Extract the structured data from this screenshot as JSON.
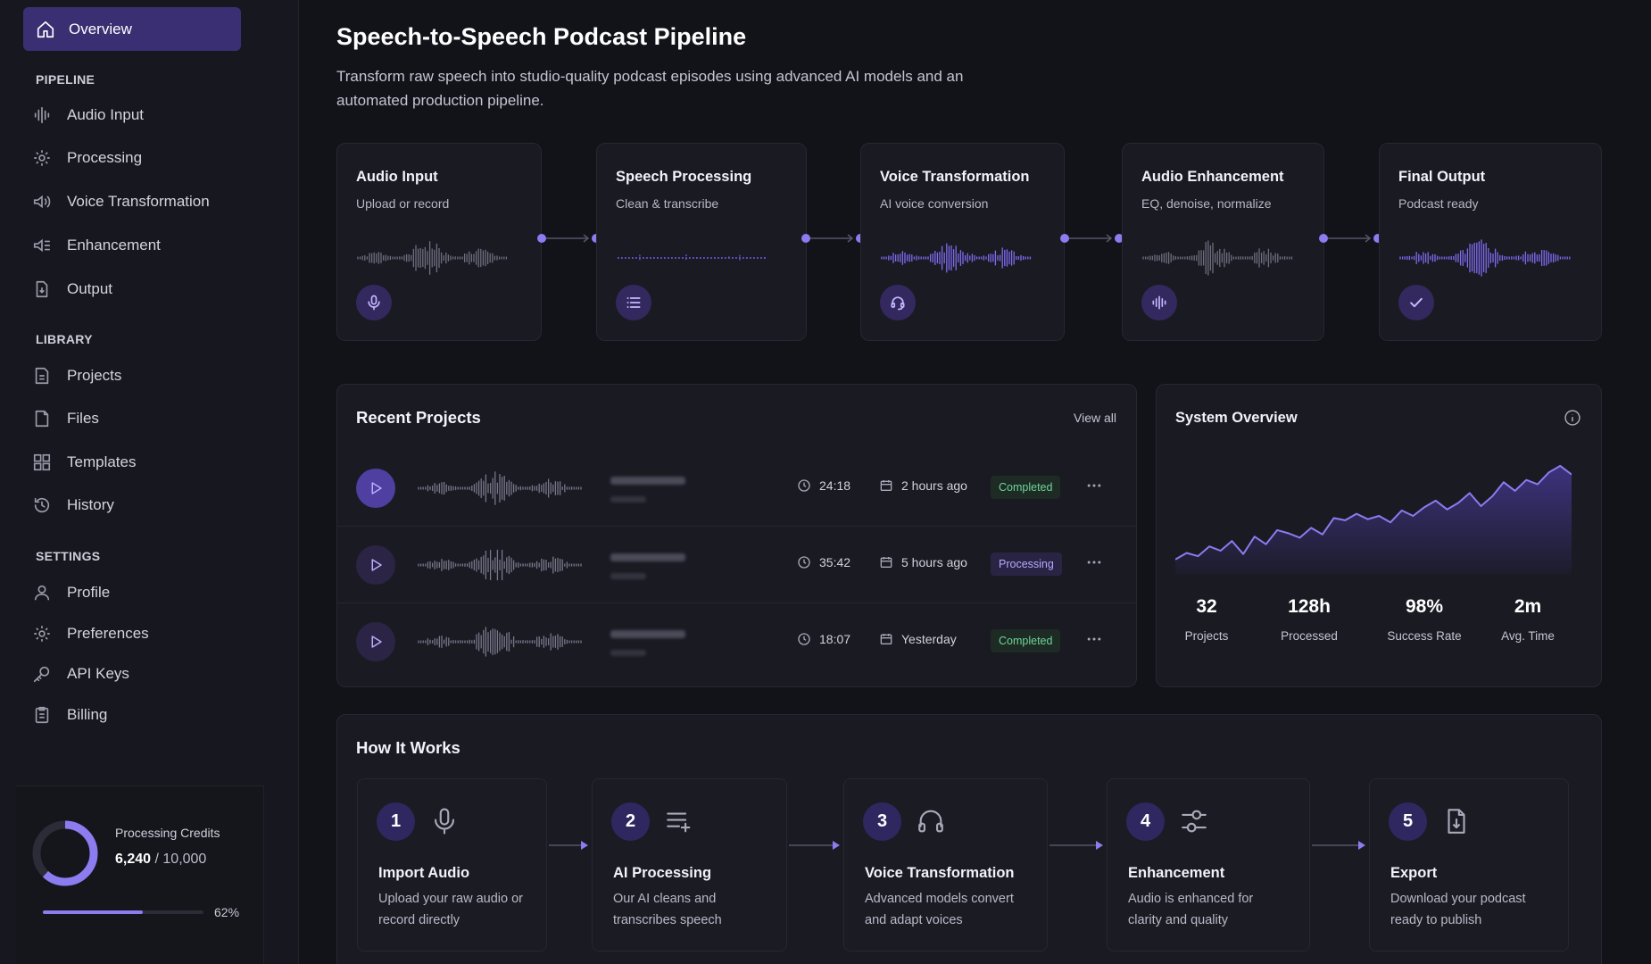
{
  "sidebar": {
    "active": {
      "label": "Overview",
      "icon": "home-icon"
    },
    "sections": [
      {
        "label": "PIPELINE",
        "items": [
          {
            "label": "Audio Input",
            "icon": "waveform-icon"
          },
          {
            "label": "Processing",
            "icon": "gear-icon"
          },
          {
            "label": "Voice Transformation",
            "icon": "voice-icon"
          },
          {
            "label": "Enhancement",
            "icon": "sliders-icon"
          },
          {
            "label": "Output",
            "icon": "export-file-icon"
          }
        ]
      },
      {
        "label": "LIBRARY",
        "items": [
          {
            "label": "Projects",
            "icon": "document-icon"
          },
          {
            "label": "Files",
            "icon": "file-icon"
          },
          {
            "label": "Templates",
            "icon": "grid-icon"
          },
          {
            "label": "History",
            "icon": "history-icon"
          }
        ]
      },
      {
        "label": "SETTINGS",
        "items": [
          {
            "label": "Profile",
            "icon": "user-icon"
          },
          {
            "label": "Preferences",
            "icon": "gear-icon"
          },
          {
            "label": "API Keys",
            "icon": "key-icon"
          },
          {
            "label": "Billing",
            "icon": "clipboard-icon"
          }
        ]
      }
    ],
    "credits": {
      "title": "Processing Credits",
      "used": "6,240",
      "total": "10,000",
      "percent": 62,
      "percent_label": "62%"
    }
  },
  "header": {
    "title": "Speech-to-Speech Podcast Pipeline",
    "subtitle": "Transform raw speech into studio-quality podcast episodes using advanced AI models and an automated production pipeline."
  },
  "pipeline": [
    {
      "title": "Audio Input",
      "subtitle": "Upload or record",
      "icon": "microphone-icon",
      "wave_style": "gray"
    },
    {
      "title": "Speech Processing",
      "subtitle": "Clean & transcribe",
      "icon": "list-icon",
      "wave_style": "dotted"
    },
    {
      "title": "Voice Transformation",
      "subtitle": "AI voice conversion",
      "icon": "headset-icon",
      "wave_style": "purple"
    },
    {
      "title": "Audio Enhancement",
      "subtitle": "EQ, denoise, normalize",
      "icon": "waveform-icon",
      "wave_style": "gray"
    },
    {
      "title": "Final Output",
      "subtitle": "Podcast ready",
      "icon": "check-icon",
      "wave_style": "purple"
    }
  ],
  "recent_projects": {
    "title": "Recent Projects",
    "view_all": "View all",
    "rows": [
      {
        "duration": "24:18",
        "date": "2 hours ago",
        "status": "Completed",
        "status_type": "done",
        "play_style": "filled"
      },
      {
        "duration": "35:42",
        "date": "5 hours ago",
        "status": "Processing",
        "status_type": "proc",
        "play_style": "outline"
      },
      {
        "duration": "18:07",
        "date": "Yesterday",
        "status": "Completed",
        "status_type": "done",
        "play_style": "outline"
      }
    ]
  },
  "system_overview": {
    "title": "System Overview",
    "info_icon": "info-icon",
    "stats": [
      {
        "value": "32",
        "label": "Projects"
      },
      {
        "value": "128h",
        "label": "Processed"
      },
      {
        "value": "98%",
        "label": "Success Rate"
      },
      {
        "value": "2m",
        "label": "Avg. Time"
      }
    ],
    "trend": [
      10,
      16,
      13,
      22,
      18,
      27,
      15,
      31,
      24,
      37,
      34,
      30,
      39,
      33,
      48,
      46,
      52,
      47,
      50,
      44,
      55,
      50,
      58,
      64,
      56,
      62,
      71,
      59,
      68,
      81,
      73,
      83,
      79,
      90,
      96,
      88
    ]
  },
  "how_it_works": {
    "title": "How It Works",
    "steps": [
      {
        "num": "1",
        "title": "Import Audio",
        "desc": "Upload your raw audio or record directly",
        "icon": "microphone-icon"
      },
      {
        "num": "2",
        "title": "AI Processing",
        "desc": "Our AI cleans and transcribes speech",
        "icon": "list-add-icon"
      },
      {
        "num": "3",
        "title": "Voice Transformation",
        "desc": "Advanced models convert and adapt voices",
        "icon": "headphones-icon"
      },
      {
        "num": "4",
        "title": "Enhancement",
        "desc": "Audio is enhanced for clarity and quality",
        "icon": "sliders-icon"
      },
      {
        "num": "5",
        "title": "Export",
        "desc": "Download your podcast ready to publish",
        "icon": "export-file-icon"
      }
    ]
  },
  "colors": {
    "accent": "#8b7cf0",
    "success": "#6fd49a",
    "background": "#121219"
  }
}
